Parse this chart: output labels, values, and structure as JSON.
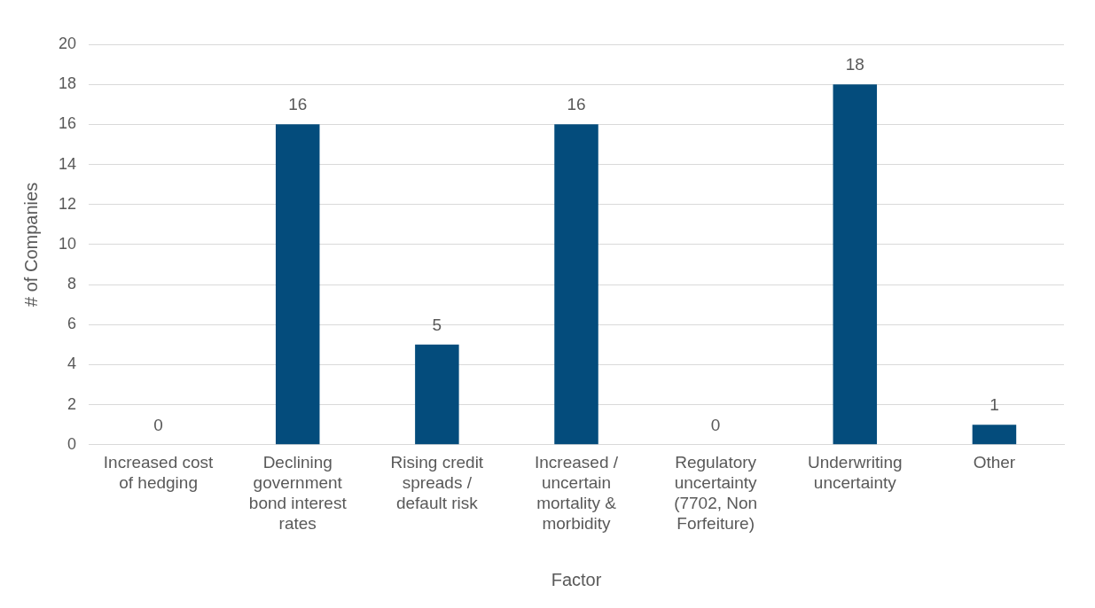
{
  "chart_data": {
    "type": "bar",
    "xlabel": "Factor",
    "ylabel": "# of Companies",
    "categories": [
      "Increased cost of hedging",
      "Declining government bond interest rates",
      "Rising credit spreads / default risk",
      "Increased / uncertain mortality & morbidity",
      "Regulatory uncertainty (7702, Non Forfeiture)",
      "Underwriting uncertainty",
      "Other"
    ],
    "values": [
      0,
      16,
      5,
      16,
      0,
      18,
      1
    ],
    "color": "#044c7c",
    "ylim": [
      0,
      20
    ],
    "yticks": [
      0,
      2,
      4,
      6,
      8,
      10,
      12,
      14,
      16,
      18,
      20
    ],
    "grid": "y",
    "legend": false,
    "data_labels": true
  }
}
